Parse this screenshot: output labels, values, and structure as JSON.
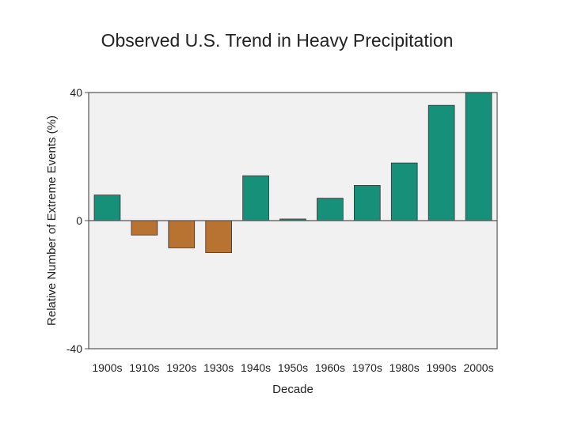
{
  "chart_data": {
    "type": "bar",
    "title": "Observed U.S. Trend in Heavy Precipitation",
    "xlabel": "Decade",
    "ylabel": "Relative Number of Extreme Events (%)",
    "ylim": [
      -40,
      40
    ],
    "yticks": [
      "40",
      "0",
      "-40"
    ],
    "ytick_values": [
      40,
      0,
      -40
    ],
    "categories": [
      "1900s",
      "1910s",
      "1920s",
      "1930s",
      "1940s",
      "1950s",
      "1960s",
      "1970s",
      "1980s",
      "1990s",
      "2000s"
    ],
    "values": [
      8,
      -4.5,
      -8.5,
      -10,
      14,
      0.5,
      7,
      11,
      18,
      36,
      40
    ],
    "colors": {
      "positive": "#17907a",
      "negative": "#b87333",
      "plot_background": "#f1f1f1",
      "axis_line": "#555555"
    },
    "grid": false
  }
}
